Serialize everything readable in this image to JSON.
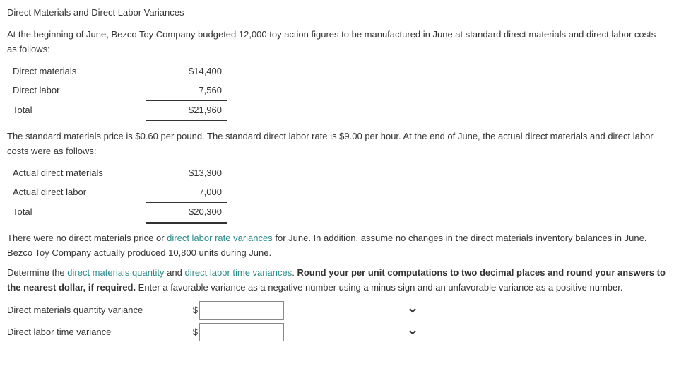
{
  "title": "Direct Materials and Direct Labor Variances",
  "intro": "At the beginning of June, Bezco Toy Company budgeted 12,000 toy action figures to be manufactured in June at standard direct materials and direct labor costs as follows:",
  "standard_table": {
    "rows": [
      {
        "label": "Direct materials",
        "value": "$14,400"
      },
      {
        "label": "Direct labor",
        "value": "7,560"
      },
      {
        "label": "Total",
        "value": "$21,960"
      }
    ]
  },
  "mid_text": "The standard materials price is $0.60 per pound. The standard direct labor rate is $9.00 per hour. At the end of June, the actual direct materials and direct labor costs were as follows:",
  "actual_table": {
    "rows": [
      {
        "label": "Actual direct materials",
        "value": "$13,300"
      },
      {
        "label": "Actual direct labor",
        "value": "7,000"
      },
      {
        "label": "Total",
        "value": "$20,300"
      }
    ]
  },
  "para3_a": "There were no direct materials price or ",
  "para3_link": "direct labor rate variances",
  "para3_b": " for June. In addition, assume no changes in the direct materials inventory balances in June. Bezco Toy Company actually produced 10,800 units during June.",
  "para4_a": "Determine the ",
  "para4_link1": "direct materials quantity",
  "para4_mid": " and ",
  "para4_link2": "direct labor time variances",
  "para4_b": ". ",
  "para4_bold": "Round your per unit computations to two decimal places and round your answers to the nearest dollar, if required.",
  "para4_c": " Enter a favorable variance as a negative number using a minus sign and an unfavorable variance as a positive number.",
  "answers": {
    "row1_label": "Direct materials quantity variance",
    "row2_label": "Direct labor time variance",
    "dollar": "$"
  }
}
